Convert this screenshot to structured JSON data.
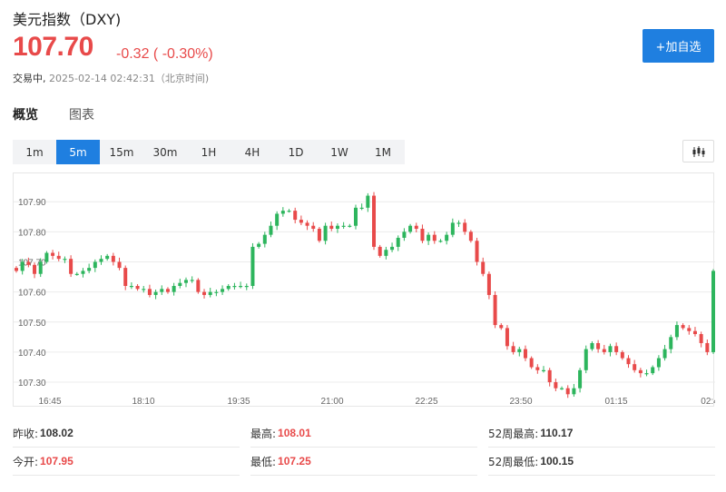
{
  "header": {
    "title": "美元指数（DXY)",
    "price": "107.70",
    "change": "-0.32 ( -0.30%)",
    "status": "交易中,",
    "timestamp": "2025-02-14 02:42:31（北京时间)",
    "add_button": "+加自选"
  },
  "tabs": [
    {
      "label": "概览",
      "active": true
    },
    {
      "label": "图表",
      "active": false
    }
  ],
  "periods": [
    {
      "label": "1m",
      "active": false
    },
    {
      "label": "5m",
      "active": true
    },
    {
      "label": "15m",
      "active": false
    },
    {
      "label": "30m",
      "active": false
    },
    {
      "label": "1H",
      "active": false
    },
    {
      "label": "4H",
      "active": false
    },
    {
      "label": "1D",
      "active": false
    },
    {
      "label": "1W",
      "active": false
    },
    {
      "label": "1M",
      "active": false
    }
  ],
  "stats": [
    {
      "label": "昨收:",
      "value": "108.02",
      "red": false
    },
    {
      "label": "最高:",
      "value": "108.01",
      "red": true
    },
    {
      "label": "52周最高:",
      "value": "110.17",
      "red": false
    },
    {
      "label": "今开:",
      "value": "107.95",
      "red": true
    },
    {
      "label": "最低:",
      "value": "107.25",
      "red": true
    },
    {
      "label": "52周最低:",
      "value": "100.15",
      "red": false
    }
  ],
  "colors": {
    "up": "#2db55d",
    "down": "#e84a4a",
    "accent": "#1f7fe0",
    "grid": "#ececec"
  },
  "icons": {
    "chart_type": "candlestick-chart-icon"
  },
  "chart_data": {
    "type": "candlestick",
    "yticks": [
      "107.90",
      "107.80",
      "107.70",
      "107.60",
      "107.50",
      "107.40",
      "107.30"
    ],
    "ylim": [
      107.27,
      107.97
    ],
    "xticks": [
      "16:45",
      "18:10",
      "19:35",
      "21:00",
      "22:25",
      "23:50",
      "01:15",
      "02:4"
    ],
    "grid": true,
    "closes": [
      107.67,
      107.7,
      107.69,
      107.66,
      107.7,
      107.73,
      107.72,
      107.71,
      107.71,
      107.66,
      107.66,
      107.67,
      107.68,
      107.7,
      107.71,
      107.72,
      107.7,
      107.68,
      107.62,
      107.62,
      107.61,
      107.61,
      107.59,
      107.6,
      107.61,
      107.6,
      107.62,
      107.63,
      107.64,
      107.64,
      107.6,
      107.59,
      107.6,
      107.6,
      107.61,
      107.62,
      107.62,
      107.62,
      107.62,
      107.75,
      107.76,
      107.79,
      107.82,
      107.86,
      107.87,
      107.87,
      107.84,
      107.83,
      107.82,
      107.81,
      107.77,
      107.82,
      107.81,
      107.82,
      107.82,
      107.82,
      107.88,
      107.88,
      107.92,
      107.75,
      107.72,
      107.74,
      107.75,
      107.78,
      107.8,
      107.82,
      107.81,
      107.77,
      107.79,
      107.77,
      107.77,
      107.79,
      107.83,
      107.83,
      107.8,
      107.77,
      107.7,
      107.66,
      107.59,
      107.49,
      107.48,
      107.42,
      107.4,
      107.41,
      107.38,
      107.35,
      107.34,
      107.34,
      107.3,
      107.28,
      107.28,
      107.26,
      107.28,
      107.34,
      107.41,
      107.43,
      107.41,
      107.4,
      107.42,
      107.4,
      107.38,
      107.36,
      107.34,
      107.33,
      107.33,
      107.35,
      107.38,
      107.41,
      107.45,
      107.49,
      107.48,
      107.47,
      107.46,
      107.43,
      107.4,
      107.67
    ]
  }
}
